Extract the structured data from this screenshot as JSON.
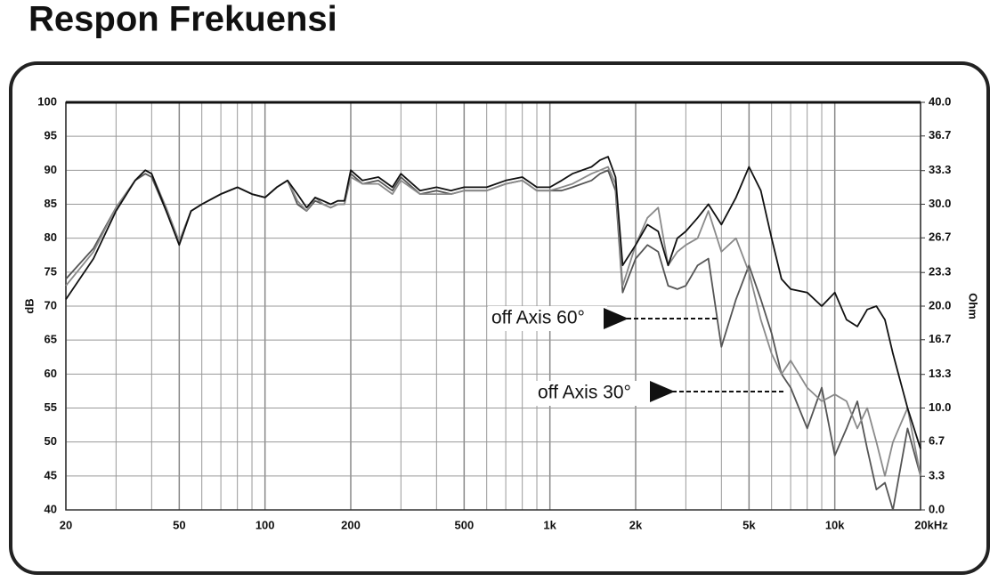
{
  "chart_data": {
    "type": "line",
    "title": "Respon Frekuensi",
    "ylabel": "dB",
    "y2label": "Ohm",
    "xscale": "log",
    "xlim": [
      20,
      20000
    ],
    "xticks": [
      20,
      50,
      100,
      200,
      500,
      {
        "value": 1000,
        "label": "1k"
      },
      {
        "value": 2000,
        "label": "2k"
      },
      {
        "value": 5000,
        "label": "5k"
      },
      {
        "value": 10000,
        "label": "10k"
      },
      {
        "value": 20000,
        "label": "20kHz"
      }
    ],
    "xminor": [
      30,
      40,
      60,
      70,
      80,
      90,
      300,
      400,
      600,
      700,
      800,
      900,
      3000,
      4000,
      6000,
      7000,
      8000,
      9000
    ],
    "ylim": [
      40,
      100
    ],
    "yticks": [
      40,
      45,
      50,
      55,
      60,
      65,
      70,
      75,
      80,
      85,
      90,
      95,
      100
    ],
    "y2lim": [
      0,
      40
    ],
    "y2ticks": [
      {
        "value": 0,
        "label": "0.0"
      },
      3.3,
      6.7,
      {
        "value": 10,
        "label": "10.0"
      },
      13.3,
      16.7,
      {
        "value": 20,
        "label": "20.0"
      },
      23.3,
      26.7,
      {
        "value": 30,
        "label": "30.0"
      },
      33.3,
      36.7,
      {
        "value": 40,
        "label": "40.0"
      }
    ],
    "grid": true,
    "x": [
      20,
      25,
      30,
      35,
      38,
      40,
      45,
      50,
      55,
      60,
      70,
      80,
      90,
      100,
      110,
      120,
      130,
      140,
      150,
      160,
      170,
      180,
      190,
      200,
      220,
      250,
      280,
      300,
      350,
      400,
      450,
      500,
      600,
      700,
      800,
      900,
      1000,
      1100,
      1200,
      1400,
      1500,
      1600,
      1700,
      1800,
      2000,
      2200,
      2400,
      2600,
      2800,
      3000,
      3300,
      3600,
      4000,
      4500,
      5000,
      5500,
      6000,
      6500,
      7000,
      8000,
      9000,
      10000,
      11000,
      12000,
      13000,
      14000,
      15000,
      16000,
      18000,
      20000
    ],
    "series": [
      {
        "color": "#111111",
        "values": [
          71,
          77,
          84,
          88.5,
          90,
          89.5,
          84,
          79,
          84,
          85,
          86.5,
          87.5,
          86.5,
          86,
          87.5,
          88.5,
          86.5,
          84.5,
          86,
          85.5,
          85,
          85.5,
          85.5,
          90,
          88.5,
          89,
          87.5,
          89.5,
          87,
          87.5,
          87,
          87.5,
          87.5,
          88.5,
          89,
          87.5,
          87.5,
          88.5,
          89.5,
          90.5,
          91.5,
          92,
          89,
          76,
          79,
          82,
          81,
          76,
          80,
          81,
          83,
          85,
          82,
          86,
          90.5,
          87,
          80,
          74,
          72.5,
          72,
          70,
          72,
          68,
          67,
          69.5,
          70,
          68,
          63,
          55,
          49
        ]
      },
      {
        "color": "#8a8a8a",
        "values": [
          73,
          78,
          84.5,
          88.5,
          90,
          89.5,
          84.5,
          79.5,
          84,
          85,
          86.5,
          87.5,
          86.5,
          86,
          87.5,
          88.5,
          85.5,
          84,
          86,
          85,
          84.5,
          85,
          85,
          89,
          88,
          88,
          86.5,
          88.5,
          86.5,
          86.5,
          86.5,
          87,
          87,
          88,
          88.5,
          87,
          87,
          87.5,
          88,
          89.5,
          90,
          90.5,
          88,
          73,
          79,
          83,
          84.5,
          76,
          78,
          79,
          80,
          84,
          78,
          80,
          75,
          68,
          63,
          60,
          62,
          58,
          56,
          57,
          56,
          52,
          55,
          50,
          45,
          50,
          55,
          45
        ]
      },
      {
        "color": "#555555",
        "values": [
          74,
          78.5,
          84.5,
          88.5,
          89.5,
          89,
          84,
          79.5,
          84,
          85,
          86.5,
          87.5,
          86.5,
          86,
          87.5,
          88.5,
          85,
          84,
          85.5,
          85,
          84.5,
          85,
          85,
          89.5,
          88,
          88.5,
          87,
          89,
          86.5,
          87,
          86.5,
          87,
          87,
          88,
          88.5,
          87,
          87,
          87,
          87.5,
          88.5,
          89.5,
          90,
          87,
          72,
          77,
          79,
          78,
          73,
          72.5,
          73,
          76,
          77,
          64,
          71,
          76,
          71,
          66,
          60,
          58,
          52,
          58,
          48,
          52,
          56,
          49,
          43,
          44,
          40,
          52,
          45
        ]
      }
    ],
    "annotations": [
      {
        "text": "off Axis 60°"
      },
      {
        "text": "off Axis 30°"
      }
    ]
  }
}
